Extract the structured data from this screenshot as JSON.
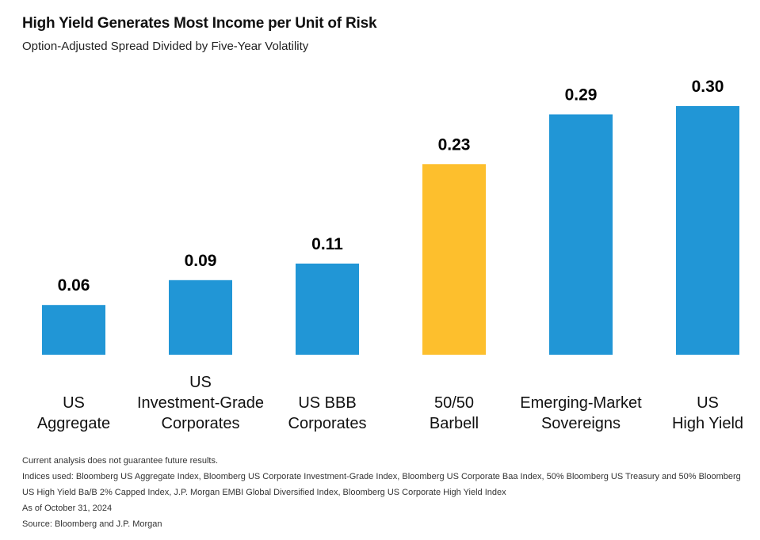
{
  "title": "High Yield Generates Most Income per Unit of Risk",
  "subtitle": "Option-Adjusted Spread Divided by Five-Year Volatility",
  "chart_data": {
    "type": "bar",
    "title": "High Yield Generates Most Income per Unit of Risk",
    "subtitle": "Option-Adjusted Spread Divided by Five-Year Volatility",
    "categories": [
      [
        "US",
        "Aggregate"
      ],
      [
        "US",
        "Investment-Grade",
        "Corporates"
      ],
      [
        "US BBB",
        "Corporates"
      ],
      [
        "50/50",
        "Barbell"
      ],
      [
        "Emerging-Market",
        "Sovereigns"
      ],
      [
        "US",
        "High Yield"
      ]
    ],
    "values": [
      0.06,
      0.09,
      0.11,
      0.23,
      0.29,
      0.3
    ],
    "value_labels": [
      "0.06",
      "0.09",
      "0.11",
      "0.23",
      "0.29",
      "0.30"
    ],
    "colors": [
      "#2196d6",
      "#2196d6",
      "#2196d6",
      "#fdbf2d",
      "#2196d6",
      "#2196d6"
    ],
    "ylim": [
      0,
      0.3
    ],
    "grid": false,
    "legend": "none"
  },
  "notes": {
    "disclaimer": "Current analysis does not guarantee future results.",
    "indices": "Indices used: Bloomberg US Aggregate Index, Bloomberg US Corporate Investment-Grade Index, Bloomberg US Corporate Baa Index, 50% Bloomberg US Treasury and 50% Bloomberg US High Yield Ba/B 2% Capped Index, J.P. Morgan EMBI Global Diversified Index, Bloomberg US Corporate High Yield Index",
    "as_of": "As of October 31, 2024",
    "source": "Source: Bloomberg and J.P. Morgan"
  }
}
